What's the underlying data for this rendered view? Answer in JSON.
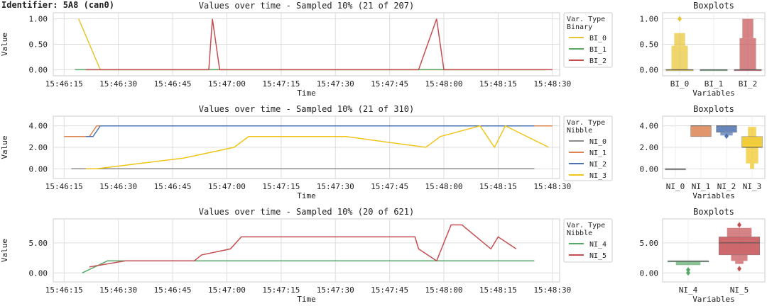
{
  "identifier": "Identifier: 5A8 (can0)",
  "chart_data": [
    {
      "type": "line",
      "title": "Values over time - Sampled 10% (21 of 207)",
      "xlabel": "Time",
      "ylabel": "Value",
      "x_ticks": [
        "15:46:15",
        "15:46:30",
        "15:46:45",
        "15:47:00",
        "15:47:15",
        "15:47:30",
        "15:47:45",
        "15:48:00",
        "15:48:15",
        "15:48:30"
      ],
      "y_ticks": [
        "0.00",
        "0.50",
        "1.00"
      ],
      "ylim": [
        -0.12,
        1.12
      ],
      "grid": true,
      "legend_title": "Var. Type\nBinary",
      "legend_placement": "outside-right",
      "series": [
        {
          "name": "BI_0",
          "color": "#e8c330",
          "points": [
            [
              "15:46:19",
              1.0
            ],
            [
              "15:46:25",
              0.0
            ],
            [
              "15:48:28",
              0.0
            ]
          ]
        },
        {
          "name": "BI_1",
          "color": "#55a868",
          "points": [
            [
              "15:46:18",
              0.0
            ],
            [
              "15:48:28",
              0.0
            ]
          ]
        },
        {
          "name": "BI_2",
          "color": "#c44e52",
          "points": [
            [
              "15:46:21",
              0.0
            ],
            [
              "15:46:55",
              0.0
            ],
            [
              "15:46:56",
              1.0
            ],
            [
              "15:46:58",
              0.0
            ],
            [
              "15:47:53",
              0.0
            ],
            [
              "15:47:58",
              1.0
            ],
            [
              "15:48:00",
              0.0
            ],
            [
              "15:48:30",
              0.0
            ]
          ]
        }
      ]
    },
    {
      "type": "line",
      "title": "Values over time - Sampled 10% (21 of 310)",
      "xlabel": "Time",
      "ylabel": "Value",
      "x_ticks": [
        "15:46:15",
        "15:46:30",
        "15:46:45",
        "15:47:00",
        "15:47:15",
        "15:47:30",
        "15:47:45",
        "15:48:00",
        "15:48:15",
        "15:48:30"
      ],
      "y_ticks": [
        "0.00",
        "2.00",
        "4.00"
      ],
      "ylim": [
        -0.9,
        4.9
      ],
      "grid": true,
      "legend_title": "Var. Type\nNibble",
      "legend_placement": "outside-right",
      "series": [
        {
          "name": "NI_0",
          "color": "#8c8c8c",
          "points": [
            [
              "15:46:17",
              0.0
            ],
            [
              "15:48:25",
              0.0
            ]
          ]
        },
        {
          "name": "NI_1",
          "color": "#dd8452",
          "points": [
            [
              "15:46:15",
              3.0
            ],
            [
              "15:46:22",
              3.0
            ],
            [
              "15:46:24",
              4.0
            ],
            [
              "15:48:30",
              4.0
            ]
          ]
        },
        {
          "name": "NI_2",
          "color": "#4c72b0",
          "points": [
            [
              "15:46:21",
              3.0
            ],
            [
              "15:46:23",
              3.0
            ],
            [
              "15:46:25",
              4.0
            ],
            [
              "15:48:25",
              4.0
            ]
          ]
        },
        {
          "name": "NI_3",
          "color": "#f0c419",
          "points": [
            [
              "15:46:21",
              0.0
            ],
            [
              "15:46:24",
              0.0
            ],
            [
              "15:46:48",
              1.0
            ],
            [
              "15:47:02",
              2.0
            ],
            [
              "15:47:06",
              3.0
            ],
            [
              "15:47:33",
              3.0
            ],
            [
              "15:47:55",
              2.0
            ],
            [
              "15:47:59",
              3.0
            ],
            [
              "15:48:10",
              4.0
            ],
            [
              "15:48:14",
              2.0
            ],
            [
              "15:48:17",
              4.0
            ],
            [
              "15:48:29",
              2.0
            ]
          ]
        }
      ]
    },
    {
      "type": "line",
      "title": "Values over time - Sampled 10% (20 of 621)",
      "xlabel": "Time",
      "ylabel": "Value",
      "x_ticks": [
        "15:46:15",
        "15:46:30",
        "15:46:45",
        "15:47:00",
        "15:47:15",
        "15:47:30",
        "15:47:45",
        "15:48:00",
        "15:48:15",
        "15:48:30"
      ],
      "y_ticks": [
        "0.00",
        "5.00"
      ],
      "ylim": [
        -1.5,
        9.0
      ],
      "grid": true,
      "legend_title": "Var. Type\nNibble",
      "legend_placement": "outside-right",
      "series": [
        {
          "name": "NI_4",
          "color": "#55a868",
          "points": [
            [
              "15:46:20",
              0.0
            ],
            [
              "15:46:27",
              2.0
            ],
            [
              "15:48:25",
              2.0
            ]
          ]
        },
        {
          "name": "NI_5",
          "color": "#c44e52",
          "points": [
            [
              "15:46:22",
              1.0
            ],
            [
              "15:46:32",
              2.0
            ],
            [
              "15:46:51",
              2.0
            ],
            [
              "15:46:53",
              3.0
            ],
            [
              "15:47:01",
              4.0
            ],
            [
              "15:47:04",
              6.0
            ],
            [
              "15:47:52",
              6.0
            ],
            [
              "15:47:53",
              4.0
            ],
            [
              "15:47:58",
              2.0
            ],
            [
              "15:48:02",
              8.0
            ],
            [
              "15:48:05",
              8.0
            ],
            [
              "15:48:13",
              4.0
            ],
            [
              "15:48:15",
              6.0
            ],
            [
              "15:48:20",
              4.0
            ]
          ]
        }
      ]
    },
    {
      "type": "boxplot",
      "title": "Boxplots",
      "xlabel": "Variables",
      "categories": [
        "BI_0",
        "BI_1",
        "BI_2"
      ],
      "y_ticks": [
        "0.00",
        "0.50",
        "1.00"
      ],
      "ylim": [
        -0.12,
        1.12
      ],
      "boxes": [
        {
          "name": "BI_0",
          "color": "#e8c330",
          "median": 0.0,
          "q1": 0.0,
          "q3": 0.0,
          "boxen": [
            [
              0.0,
              0.47
            ],
            [
              0.47,
              0.72
            ]
          ],
          "whisker": [
            0.0,
            0.0
          ],
          "outliers": [
            1.0
          ]
        },
        {
          "name": "BI_1",
          "color": "#55a868",
          "median": 0.0,
          "q1": 0.0,
          "q3": 0.0,
          "boxen": [],
          "whisker": [
            0.0,
            0.0
          ],
          "outliers": []
        },
        {
          "name": "BI_2",
          "color": "#c44e52",
          "median": 0.0,
          "q1": 0.0,
          "q3": 0.0,
          "boxen": [
            [
              0.0,
              0.62
            ],
            [
              0.62,
              1.0
            ]
          ],
          "whisker": [
            0.0,
            0.0
          ],
          "outliers": []
        }
      ]
    },
    {
      "type": "boxplot",
      "title": "Boxplots",
      "xlabel": "Variables",
      "categories": [
        "NI_0",
        "NI_1",
        "NI_2",
        "NI_3"
      ],
      "y_ticks": [
        "0.00",
        "2.00",
        "4.00"
      ],
      "ylim": [
        -0.9,
        4.9
      ],
      "boxes": [
        {
          "name": "NI_0",
          "color": "#8c8c8c",
          "median": 0.0,
          "q1": 0.0,
          "q3": 0.0,
          "boxen": [],
          "whisker": [
            0.0,
            0.0
          ],
          "outliers": []
        },
        {
          "name": "NI_1",
          "color": "#dd8452",
          "median": 4.0,
          "q1": 3.0,
          "q3": 4.0,
          "boxen": [],
          "whisker": [
            3.0,
            4.0
          ],
          "outliers": []
        },
        {
          "name": "NI_2",
          "color": "#4c72b0",
          "median": 4.0,
          "q1": 3.4,
          "q3": 4.0,
          "boxen": [
            [
              3.1,
              3.4
            ]
          ],
          "whisker": [
            3.4,
            4.0
          ],
          "outliers": [
            3.05
          ]
        },
        {
          "name": "NI_3",
          "color": "#f0c419",
          "median": 2.0,
          "q1": 2.0,
          "q3": 3.0,
          "boxen": [
            [
              0.5,
              2.0
            ],
            [
              3.0,
              3.9
            ],
            [
              0.0,
              0.5
            ]
          ],
          "whisker": [
            0.0,
            3.9
          ],
          "outliers": []
        }
      ]
    },
    {
      "type": "boxplot",
      "title": "Boxplots",
      "xlabel": "Variables",
      "categories": [
        "NI_4",
        "NI_5"
      ],
      "y_ticks": [
        "0.00",
        "5.00"
      ],
      "ylim": [
        -1.5,
        9.0
      ],
      "boxes": [
        {
          "name": "NI_4",
          "color": "#55a868",
          "median": 2.0,
          "q1": 2.0,
          "q3": 2.0,
          "boxen": [
            [
              1.3,
              2.0
            ]
          ],
          "whisker": [
            2.0,
            2.0
          ],
          "outliers": [
            0.5,
            0.0
          ]
        },
        {
          "name": "NI_5",
          "color": "#c44e52",
          "median": 5.0,
          "q1": 3.0,
          "q3": 6.0,
          "boxen": [
            [
              6.0,
              7.5
            ],
            [
              2.0,
              3.0
            ],
            [
              1.5,
              2.0
            ]
          ],
          "whisker": [
            3.0,
            6.0
          ],
          "outliers": [
            8.0,
            0.7
          ]
        }
      ]
    }
  ]
}
